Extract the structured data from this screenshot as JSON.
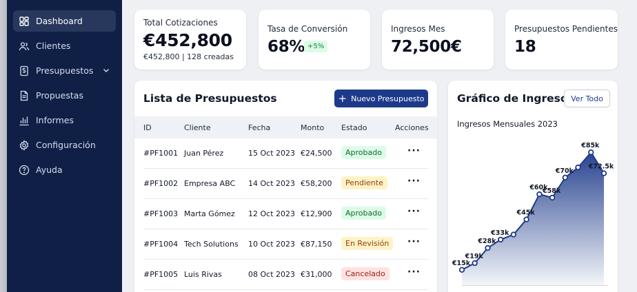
{
  "sidebar": {
    "items": [
      {
        "label": "Dashboard",
        "icon": "dashboard-icon",
        "active": true
      },
      {
        "label": "Clientes",
        "icon": "users-icon"
      },
      {
        "label": "Presupuestos",
        "icon": "budget-icon",
        "has_submenu": true
      },
      {
        "label": "Propuestas",
        "icon": "document-icon"
      },
      {
        "label": "Informes",
        "icon": "bar-chart-icon"
      },
      {
        "label": "Configuración",
        "icon": "gear-icon"
      },
      {
        "label": "Ayuda",
        "icon": "help-icon"
      }
    ]
  },
  "stats": [
    {
      "label": "Total Cotizaciones",
      "value": "€452,800",
      "sub": "€452,800 | 128 creadas"
    },
    {
      "label": "Tasa de Conversión",
      "value": "68%",
      "badge": "+5%"
    },
    {
      "label": "Ingresos Mes",
      "value": "72,500€"
    },
    {
      "label": "Presupuestos Pendientes",
      "value": "18"
    }
  ],
  "table": {
    "title": "Lista de Presupuestos",
    "new_button": "Nuevo Presupuesto",
    "columns": [
      "ID",
      "Cliente",
      "Fecha",
      "Monto",
      "Estado",
      "Acciones"
    ],
    "rows": [
      {
        "id": "#PF1001",
        "client": "Juan Pérez",
        "date": "15 Oct 2023",
        "amount": "€24,500",
        "status": "Aprobado",
        "tone": "green"
      },
      {
        "id": "#PF1002",
        "client": "Empresa ABC",
        "date": "14 Oct 2023",
        "amount": "€58,200",
        "status": "Pendiente",
        "tone": "yellow"
      },
      {
        "id": "#PF1003",
        "client": "Marta Gómez",
        "date": "12 Oct 2023",
        "amount": "€12,900",
        "status": "Aprobado",
        "tone": "green"
      },
      {
        "id": "#PF1004",
        "client": "Tech Solutions",
        "date": "10 Oct 2023",
        "amount": "€87,150",
        "status": "En Revisión",
        "tone": "yellow"
      },
      {
        "id": "#PF1005",
        "client": "Luis Rivas",
        "date": "08 Oct 2023",
        "amount": "€31,000",
        "status": "Cancelado",
        "tone": "red"
      }
    ],
    "actions_glyph": "···"
  },
  "chart_panel": {
    "title": "Gráfico de Ingresos",
    "view_all": "Ver Todo",
    "subtitle": "Ingresos Mensuales 2023"
  },
  "chart_data": {
    "type": "area",
    "title": "Ingresos Mensuales 2023",
    "y": [
      15,
      19,
      28,
      33,
      36,
      45,
      60,
      58,
      70,
      76,
      85,
      72.5
    ],
    "labels": [
      "€15k",
      "€19k",
      "€28k",
      "€33k",
      "",
      "€45k",
      "€60k",
      "€58k",
      "€70k",
      "",
      "€85k",
      "€72.5k"
    ],
    "color": "#1d3a8a"
  },
  "colors": {
    "sidebar": "#0f1f46",
    "primary": "#1d3a8a"
  }
}
